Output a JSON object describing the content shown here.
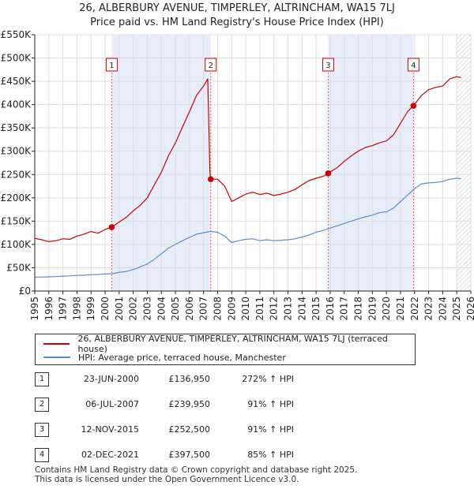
{
  "title_line1": "26, ALBERBURY AVENUE, TIMPERLEY, ALTRINCHAM, WA15 7LJ",
  "title_line2": "Price paid vs. HM Land Registry's House Price Index (HPI)",
  "chart_data": {
    "type": "line",
    "x_range": [
      1995.0,
      2026.0
    ],
    "ylim": [
      0,
      550000
    ],
    "y_ticks": [
      {
        "value": 0,
        "label": "£0"
      },
      {
        "value": 50000,
        "label": "£50K"
      },
      {
        "value": 100000,
        "label": "£100K"
      },
      {
        "value": 150000,
        "label": "£150K"
      },
      {
        "value": 200000,
        "label": "£200K"
      },
      {
        "value": 250000,
        "label": "£250K"
      },
      {
        "value": 300000,
        "label": "£300K"
      },
      {
        "value": 350000,
        "label": "£350K"
      },
      {
        "value": 400000,
        "label": "£400K"
      },
      {
        "value": 450000,
        "label": "£450K"
      },
      {
        "value": 500000,
        "label": "£500K"
      },
      {
        "value": 550000,
        "label": "£550K"
      }
    ],
    "x_ticks": [
      "1995",
      "1996",
      "1997",
      "1998",
      "1999",
      "2000",
      "2001",
      "2002",
      "2003",
      "2004",
      "2005",
      "2006",
      "2007",
      "2008",
      "2009",
      "2010",
      "2011",
      "2012",
      "2013",
      "2014",
      "2015",
      "2016",
      "2017",
      "2018",
      "2019",
      "2020",
      "2021",
      "2022",
      "2023",
      "2024",
      "2025",
      "2026"
    ],
    "series": [
      {
        "name": "26, ALBERBURY AVENUE, TIMPERLEY, ALTRINCHAM, WA15 7LJ (terraced house)",
        "color": "#cc0000",
        "points": [
          [
            1995.0,
            113000
          ],
          [
            1995.5,
            110000
          ],
          [
            1996.0,
            106000
          ],
          [
            1996.5,
            108000
          ],
          [
            1997.0,
            112000
          ],
          [
            1997.5,
            111000
          ],
          [
            1998.0,
            118000
          ],
          [
            1998.5,
            122000
          ],
          [
            1999.0,
            128000
          ],
          [
            1999.5,
            124000
          ],
          [
            2000.0,
            132000
          ],
          [
            2000.47,
            136950
          ],
          [
            2001.0,
            148000
          ],
          [
            2001.5,
            158000
          ],
          [
            2002.0,
            172000
          ],
          [
            2002.5,
            184000
          ],
          [
            2003.0,
            200000
          ],
          [
            2003.5,
            228000
          ],
          [
            2004.0,
            255000
          ],
          [
            2004.5,
            290000
          ],
          [
            2005.0,
            318000
          ],
          [
            2005.5,
            352000
          ],
          [
            2006.0,
            385000
          ],
          [
            2006.5,
            420000
          ],
          [
            2007.0,
            440000
          ],
          [
            2007.3,
            455000
          ],
          [
            2007.45,
            255000
          ],
          [
            2007.51,
            239950
          ],
          [
            2008.0,
            240000
          ],
          [
            2008.5,
            225000
          ],
          [
            2009.0,
            192000
          ],
          [
            2009.5,
            200000
          ],
          [
            2010.0,
            208000
          ],
          [
            2010.5,
            212000
          ],
          [
            2011.0,
            207000
          ],
          [
            2011.5,
            210000
          ],
          [
            2012.0,
            205000
          ],
          [
            2012.5,
            208000
          ],
          [
            2013.0,
            212000
          ],
          [
            2013.5,
            218000
          ],
          [
            2014.0,
            228000
          ],
          [
            2014.5,
            237000
          ],
          [
            2015.0,
            242000
          ],
          [
            2015.5,
            246000
          ],
          [
            2015.86,
            252500
          ],
          [
            2016.5,
            265000
          ],
          [
            2017.0,
            278000
          ],
          [
            2017.5,
            290000
          ],
          [
            2018.0,
            300000
          ],
          [
            2018.5,
            308000
          ],
          [
            2019.0,
            312000
          ],
          [
            2019.5,
            318000
          ],
          [
            2020.0,
            322000
          ],
          [
            2020.5,
            335000
          ],
          [
            2021.0,
            360000
          ],
          [
            2021.5,
            385000
          ],
          [
            2021.92,
            397500
          ],
          [
            2022.5,
            420000
          ],
          [
            2023.0,
            432000
          ],
          [
            2023.5,
            437000
          ],
          [
            2024.0,
            440000
          ],
          [
            2024.5,
            455000
          ],
          [
            2025.0,
            460000
          ],
          [
            2025.3,
            458000
          ]
        ]
      },
      {
        "name": "HPI: Average price, terraced house, Manchester",
        "color": "#5b8cc9",
        "points": [
          [
            1995.0,
            30000
          ],
          [
            1995.5,
            30000
          ],
          [
            1996.0,
            30500
          ],
          [
            1996.5,
            31000
          ],
          [
            1997.0,
            32000
          ],
          [
            1997.5,
            32500
          ],
          [
            1998.0,
            33500
          ],
          [
            1998.5,
            34000
          ],
          [
            1999.0,
            35000
          ],
          [
            1999.5,
            35500
          ],
          [
            2000.0,
            36500
          ],
          [
            2000.5,
            37000
          ],
          [
            2001.0,
            40000
          ],
          [
            2001.5,
            42000
          ],
          [
            2002.0,
            46000
          ],
          [
            2002.5,
            52000
          ],
          [
            2003.0,
            58000
          ],
          [
            2003.5,
            68000
          ],
          [
            2004.0,
            80000
          ],
          [
            2004.5,
            92000
          ],
          [
            2005.0,
            100000
          ],
          [
            2005.5,
            108000
          ],
          [
            2006.0,
            115000
          ],
          [
            2006.5,
            122000
          ],
          [
            2007.0,
            125000
          ],
          [
            2007.5,
            128000
          ],
          [
            2008.0,
            126000
          ],
          [
            2008.5,
            118000
          ],
          [
            2009.0,
            104000
          ],
          [
            2009.5,
            108000
          ],
          [
            2010.0,
            111000
          ],
          [
            2010.5,
            112000
          ],
          [
            2011.0,
            108000
          ],
          [
            2011.5,
            110000
          ],
          [
            2012.0,
            108000
          ],
          [
            2012.5,
            109000
          ],
          [
            2013.0,
            110000
          ],
          [
            2013.5,
            112000
          ],
          [
            2014.0,
            116000
          ],
          [
            2014.5,
            120000
          ],
          [
            2015.0,
            126000
          ],
          [
            2015.5,
            130000
          ],
          [
            2016.0,
            135000
          ],
          [
            2016.5,
            140000
          ],
          [
            2017.0,
            145000
          ],
          [
            2017.5,
            150000
          ],
          [
            2018.0,
            155000
          ],
          [
            2018.5,
            159000
          ],
          [
            2019.0,
            163000
          ],
          [
            2019.5,
            168000
          ],
          [
            2020.0,
            170000
          ],
          [
            2020.5,
            178000
          ],
          [
            2021.0,
            192000
          ],
          [
            2021.5,
            206000
          ],
          [
            2022.0,
            220000
          ],
          [
            2022.5,
            230000
          ],
          [
            2023.0,
            232000
          ],
          [
            2023.5,
            233000
          ],
          [
            2024.0,
            235000
          ],
          [
            2024.5,
            240000
          ],
          [
            2025.0,
            242000
          ],
          [
            2025.3,
            241000
          ]
        ]
      }
    ],
    "sales": [
      {
        "id": "1",
        "x": 2000.47,
        "price": 136950
      },
      {
        "id": "2",
        "x": 2007.51,
        "price": 239950
      },
      {
        "id": "3",
        "x": 2015.86,
        "price": 252500
      },
      {
        "id": "4",
        "x": 2021.92,
        "price": 397500
      }
    ],
    "shaded_periods": [
      [
        2000.47,
        2007.51
      ],
      [
        2015.86,
        2021.92
      ]
    ],
    "hatched_after": 2025.0,
    "colors": {
      "price_paid": "#cc0000",
      "hpi": "#5b8cc9",
      "shade": "#e8eef9",
      "grid": "#dddddd",
      "sale_line": "#e06060"
    }
  },
  "legend": {
    "price_paid_label": "26, ALBERBURY AVENUE, TIMPERLEY, ALTRINCHAM, WA15 7LJ (terraced house)",
    "hpi_label": "HPI: Average price, terraced house, Manchester"
  },
  "sales_table": [
    {
      "num": "1",
      "date": "23-JUN-2000",
      "price": "£136,950",
      "hpi_change": "272% ↑ HPI"
    },
    {
      "num": "2",
      "date": "06-JUL-2007",
      "price": "£239,950",
      "hpi_change": "91% ↑ HPI"
    },
    {
      "num": "3",
      "date": "12-NOV-2015",
      "price": "£252,500",
      "hpi_change": "91% ↑ HPI"
    },
    {
      "num": "4",
      "date": "02-DEC-2021",
      "price": "£397,500",
      "hpi_change": "85% ↑ HPI"
    }
  ],
  "footer_line1": "Contains HM Land Registry data © Crown copyright and database right 2025.",
  "footer_line2": "This data is licensed under the Open Government Licence v3.0."
}
